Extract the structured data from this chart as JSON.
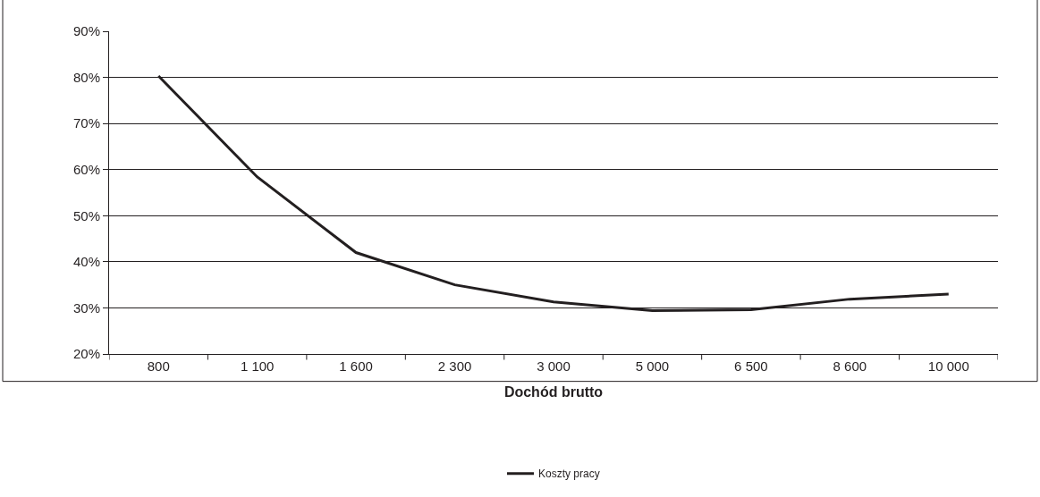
{
  "chart_data": {
    "type": "line",
    "xlabel": "Dochód brutto",
    "categories": [
      "800",
      "1 100",
      "1 600",
      "2 300",
      "3 000",
      "5 000",
      "6 500",
      "8 600",
      "10 000"
    ],
    "series": [
      {
        "name": "Koszty pracy",
        "color": "#231f20",
        "values": [
          80.3,
          58.4,
          42.0,
          35.0,
          31.3,
          29.4,
          29.6,
          31.9,
          33.0
        ]
      }
    ],
    "ylim": [
      20,
      90
    ],
    "yticks": [
      {
        "value": 20,
        "label": "20%"
      },
      {
        "value": 30,
        "label": "30%"
      },
      {
        "value": 40,
        "label": "40%"
      },
      {
        "value": 50,
        "label": "50%"
      },
      {
        "value": 60,
        "label": "60%"
      },
      {
        "value": 70,
        "label": "70%"
      },
      {
        "value": 80,
        "label": "80%"
      },
      {
        "value": 90,
        "label": "90%"
      }
    ],
    "grid": "y",
    "legend": "bottom",
    "marker": "none",
    "line_style": "solid"
  }
}
